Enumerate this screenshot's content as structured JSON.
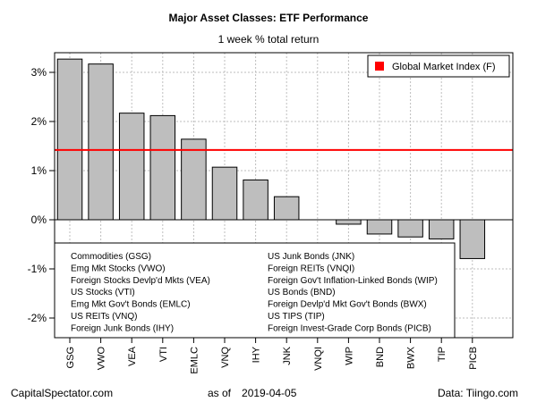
{
  "title": "Major Asset Classes: ETF Performance",
  "subtitle": "1 week % total return",
  "footer": {
    "left": "CapitalSpectator.com",
    "as_of_label": "as of",
    "date": "2019-04-05",
    "right": "Data: Tiingo.com"
  },
  "colors": {
    "bar": "#bebebe",
    "reference_line": "#ff0000",
    "grid": "#bebebe"
  },
  "chart_data": {
    "type": "bar",
    "categories": [
      "GSG",
      "VWO",
      "VEA",
      "VTI",
      "EMLC",
      "VNQ",
      "IHY",
      "JNK",
      "VNQI",
      "WIP",
      "BND",
      "BWX",
      "TIP",
      "PICB"
    ],
    "values": [
      3.27,
      3.17,
      2.17,
      2.12,
      1.64,
      1.07,
      0.81,
      0.47,
      0.0,
      -0.09,
      -0.29,
      -0.35,
      -0.39,
      -0.79
    ],
    "ylim": [
      -2.4,
      3.4
    ],
    "yticks": [
      -2,
      -1,
      0,
      1,
      2,
      3
    ],
    "ytick_labels": [
      "-2%",
      "-1%",
      "0%",
      "1%",
      "2%",
      "3%"
    ],
    "grid": true,
    "reference_line": {
      "value": 1.42,
      "label": "Global Market Index (F)",
      "legend_position": "top-right"
    },
    "category_legend_position": "bottom-left",
    "category_legend": [
      "Commodities (GSG)",
      "Emg Mkt Stocks (VWO)",
      "Foreign Stocks Devlp'd Mkts (VEA)",
      "US Stocks (VTI)",
      "Emg Mkt Gov't Bonds (EMLC)",
      "US REITs (VNQ)",
      "Foreign Junk Bonds (IHY)",
      "US Junk Bonds (JNK)",
      "Foreign REITs (VNQI)",
      "Foreign Gov't Inflation-Linked Bonds (WIP)",
      "US Bonds (BND)",
      "Foreign Devlp'd Mkt Gov't Bonds (BWX)",
      "US TIPS (TIP)",
      "Foreign Invest-Grade Corp Bonds (PICB)"
    ]
  }
}
